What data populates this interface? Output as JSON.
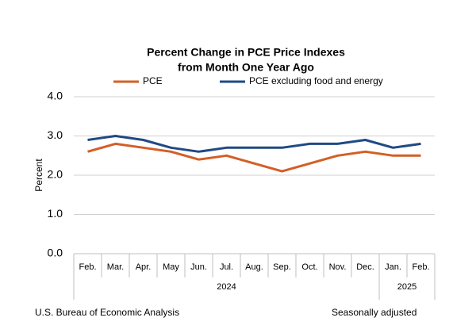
{
  "chart_data": {
    "type": "line",
    "title": [
      "Percent Change in PCE Price Indexes",
      "from Month One Year Ago"
    ],
    "y_label": "Percent",
    "categories": [
      "Feb.",
      "Mar.",
      "Apr.",
      "May",
      "Jun.",
      "Jul.",
      "Aug.",
      "Sep.",
      "Oct.",
      "Nov.",
      "Dec.",
      "Jan.",
      "Feb."
    ],
    "years": [
      "2024",
      "2025"
    ],
    "series": [
      {
        "name": "PCE",
        "color": "#d35f26",
        "values": [
          2.6,
          2.8,
          2.7,
          2.6,
          2.4,
          2.5,
          2.3,
          2.1,
          2.3,
          2.5,
          2.6,
          2.5,
          2.5
        ]
      },
      {
        "name": "PCE excluding food and energy",
        "color": "#1f4a84",
        "values": [
          2.9,
          3.0,
          2.9,
          2.7,
          2.6,
          2.7,
          2.7,
          2.7,
          2.8,
          2.8,
          2.9,
          2.7,
          2.8
        ]
      }
    ],
    "ylim": [
      0,
      4
    ],
    "yticks": [
      {
        "value": 0,
        "label": "0.0"
      },
      {
        "value": 1,
        "label": "1.0"
      },
      {
        "value": 2,
        "label": "2.0"
      },
      {
        "value": 3,
        "label": "3.0"
      },
      {
        "value": 4,
        "label": "4.0"
      }
    ],
    "grid": true,
    "source": "U.S. Bureau of Economic Analysis",
    "note": "Seasonally adjusted"
  }
}
